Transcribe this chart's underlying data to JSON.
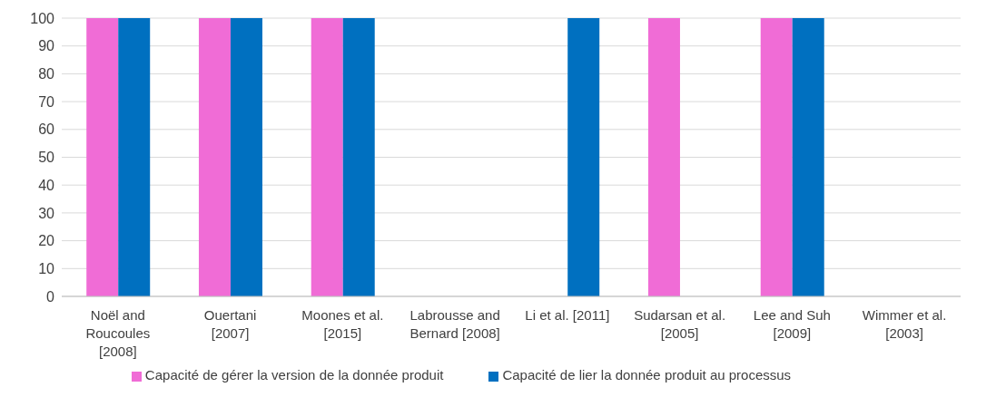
{
  "chart_data": {
    "type": "bar",
    "categories": [
      "Noël and Roucoules [2008]",
      "Ouertani [2007]",
      "Moones et al. [2015]",
      "Labrousse and Bernard [2008]",
      "Li et al. [2011]",
      "Sudarsan et al. [2005]",
      "Lee and Suh [2009]",
      "Wimmer et al. [2003]"
    ],
    "series": [
      {
        "name": "Capacité de gérer la version de la donnée produit",
        "color": "#f06cd6",
        "values": [
          100,
          100,
          100,
          0,
          0,
          100,
          100,
          0
        ]
      },
      {
        "name": "Capacité de lier la donnée produit au processus",
        "color": "#0070c0",
        "values": [
          100,
          100,
          100,
          0,
          100,
          0,
          100,
          0
        ]
      }
    ],
    "ylim": [
      0,
      100
    ],
    "yticks": [
      0,
      10,
      20,
      30,
      40,
      50,
      60,
      70,
      80,
      90,
      100
    ],
    "grid": "y",
    "legend": "bottom"
  }
}
